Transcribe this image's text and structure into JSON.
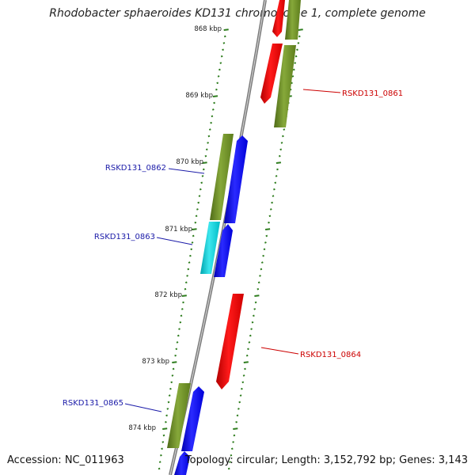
{
  "title": "Rhodobacter sphaeroides KD131 chromosome 1, complete genome",
  "footer": {
    "accession": "Accession: NC_011963",
    "summary": "Topology: circular; Length: 3,152,792 bp; Genes: 3,143"
  },
  "colors": {
    "backbone": "#888888",
    "ticks": "#2e7d1e",
    "red": "#ff0000",
    "olive": "#6b8e23",
    "blue": "#0000ff",
    "cyan": "#00c8d2",
    "label_red": "#cc0000",
    "label_blue": "#1a1aa8"
  },
  "scale_labels": [
    "868 kbp",
    "869 kbp",
    "870 kbp",
    "871 kbp",
    "872 kbp",
    "873 kbp",
    "874 kbp"
  ],
  "gene_labels": [
    {
      "id": "RSKD131_0861",
      "color": "red"
    },
    {
      "id": "RSKD131_0862",
      "color": "blue"
    },
    {
      "id": "RSKD131_0863",
      "color": "blue"
    },
    {
      "id": "RSKD131_0864",
      "color": "red"
    },
    {
      "id": "RSKD131_0865",
      "color": "blue"
    }
  ]
}
